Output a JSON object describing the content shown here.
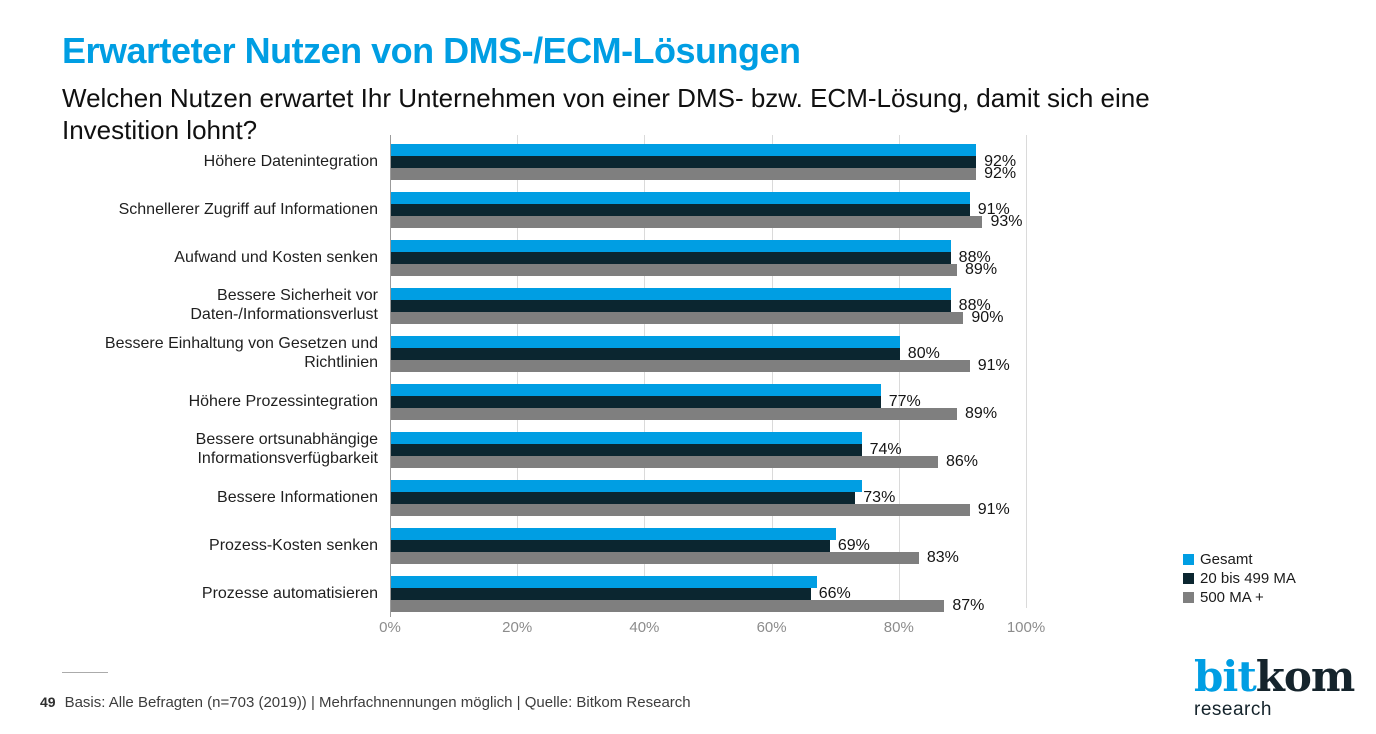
{
  "slide": {
    "title": "Erwarteter Nutzen von DMS-/ECM-Lösungen",
    "subtitle": "Welchen Nutzen erwartet Ihr Unternehmen von einer DMS- bzw. ECM-Lösung, damit sich eine Investition lohnt?",
    "page_number": "49",
    "source_note": "Basis: Alle Befragten (n=703 (2019)) | Mehrfachnennungen möglich | Quelle: Bitkom Research",
    "logo": {
      "word_blue": "bit",
      "word_dark": "kom",
      "subtext": "research"
    }
  },
  "colors": {
    "accent_blue": "#009ee3",
    "series_dark": "#0b2630",
    "series_gray": "#7f7f7f",
    "grid": "#dadada",
    "axis": "#9b9b9b",
    "tick_text": "#8c8c8c",
    "logo_dark": "#15242c"
  },
  "chart_data": {
    "type": "bar",
    "orientation": "horizontal",
    "title": "",
    "xlabel": "",
    "ylabel": "",
    "xlim": [
      0,
      100
    ],
    "grid": "vertical",
    "legend_position": "right-bottom",
    "value_suffix": "%",
    "xticks": [
      {
        "v": 0,
        "label": "0%"
      },
      {
        "v": 20,
        "label": "20%"
      },
      {
        "v": 40,
        "label": "40%"
      },
      {
        "v": 60,
        "label": "60%"
      },
      {
        "v": 80,
        "label": "80%"
      },
      {
        "v": 100,
        "label": "100%"
      }
    ],
    "categories": [
      "Höhere Datenintegration",
      "Schnellerer Zugriff auf Informationen",
      "Aufwand und Kosten senken",
      "Bessere Sicherheit vor Daten-/Informationsverlust",
      "Bessere Einhaltung von Gesetzen und Richtlinien",
      "Höhere Prozessintegration",
      "Bessere ortsunabhängige Informationsverfügbarkeit",
      "Bessere Informationen",
      "Prozess-Kosten senken",
      "Prozesse automatisieren"
    ],
    "series": [
      {
        "name": "Gesamt",
        "color": "#009ee3",
        "show_labels": false,
        "values": [
          92,
          91,
          88,
          88,
          80,
          77,
          74,
          74,
          70,
          67
        ]
      },
      {
        "name": "20 bis 499 MA",
        "color": "#0b2630",
        "show_labels": true,
        "values": [
          92,
          91,
          88,
          88,
          80,
          77,
          74,
          73,
          69,
          66
        ]
      },
      {
        "name": "500 MA +",
        "color": "#7f7f7f",
        "show_labels": true,
        "values": [
          92,
          93,
          89,
          90,
          91,
          89,
          86,
          91,
          83,
          87
        ]
      }
    ]
  }
}
